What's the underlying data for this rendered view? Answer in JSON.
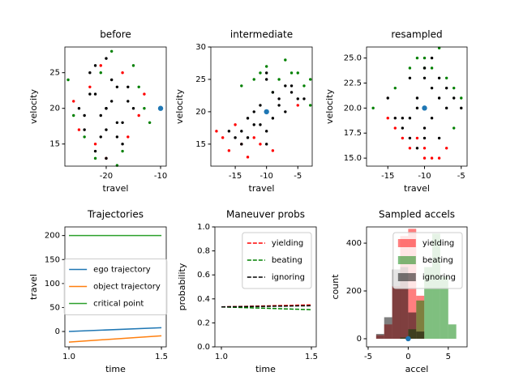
{
  "chart_data": [
    {
      "type": "scatter",
      "title": "before",
      "xlabel": "travel",
      "ylabel": "velocity",
      "xlim": [
        -27.6,
        -8.96
      ],
      "ylim": [
        11.9,
        28.6
      ],
      "xticks": [
        -20,
        -10
      ],
      "yticks": [
        15,
        20,
        25
      ],
      "series": [
        {
          "color": "#ff0000",
          "x": [
            -26,
            -14,
            -22,
            -17,
            -25,
            -13,
            -20,
            -23,
            -16,
            -21
          ],
          "y": [
            21,
            19,
            15,
            25,
            17,
            22,
            13,
            23,
            16,
            26
          ]
        },
        {
          "color": "#008000",
          "x": [
            -27,
            -13,
            -24,
            -15,
            -19,
            -22,
            -12,
            -26,
            -17,
            -21,
            -18,
            -14
          ],
          "y": [
            24,
            20,
            16,
            26,
            28,
            13,
            18,
            19,
            14,
            25,
            12,
            23
          ]
        },
        {
          "color": "#000000",
          "x": [
            -20,
            -22,
            -18,
            -24,
            -16,
            -21,
            -19,
            -23,
            -17,
            -20,
            -25,
            -15,
            -22,
            -18,
            -20,
            -21,
            -19,
            -23,
            -17,
            -20,
            -24,
            -16,
            -22,
            -18,
            -20
          ],
          "y": [
            20,
            22,
            18,
            19,
            21,
            16,
            24,
            25,
            15,
            27,
            20,
            20,
            14,
            23,
            17,
            19,
            21,
            22,
            18,
            13,
            17,
            23,
            26,
            16,
            20
          ]
        }
      ],
      "points": [
        {
          "color": "#1f77b4",
          "x": -10,
          "y": 20
        }
      ]
    },
    {
      "type": "scatter",
      "title": "intermediate",
      "xlabel": "travel",
      "ylabel": "velocity",
      "xlim": [
        -18.9,
        -2.7
      ],
      "ylim": [
        11.6,
        30
      ],
      "xticks": [
        -15,
        -10,
        -5
      ],
      "yticks": [
        15,
        20,
        25,
        30
      ],
      "series": [
        {
          "color": "#ff0000",
          "x": [
            -16,
            -17,
            -13,
            -15,
            -11,
            -18,
            -9,
            -5,
            -14,
            -12
          ],
          "y": [
            14,
            16,
            13,
            18,
            15,
            17,
            14,
            21,
            15,
            16
          ]
        },
        {
          "color": "#008000",
          "x": [
            -6,
            -8,
            -4,
            -10,
            -3,
            -12,
            -7,
            -5,
            -9,
            -14,
            -3,
            -11
          ],
          "y": [
            26,
            25,
            24,
            27,
            21,
            25,
            28,
            26,
            23,
            24,
            25,
            26
          ]
        },
        {
          "color": "#000000",
          "x": [
            -10,
            -12,
            -8,
            -14,
            -6,
            -11,
            -9,
            -13,
            -7,
            -10,
            -15,
            -5,
            -12,
            -8,
            -10,
            -11,
            -9,
            -13,
            -7,
            -10,
            -14,
            -6,
            -16,
            -4,
            -10
          ],
          "y": [
            20,
            18,
            22,
            17,
            23,
            21,
            19,
            16,
            24,
            25,
            16,
            22,
            20,
            21,
            15,
            18,
            23,
            19,
            20,
            17,
            15,
            24,
            17,
            22,
            26
          ]
        }
      ],
      "points": [
        {
          "color": "#1f77b4",
          "x": -10,
          "y": 20
        }
      ]
    },
    {
      "type": "scatter",
      "title": "resampled",
      "xlabel": "travel",
      "ylabel": "velocity",
      "xlim": [
        -17.9,
        -4.2
      ],
      "ylim": [
        14.2,
        26.1
      ],
      "xticks": [
        -15,
        -10,
        -5
      ],
      "yticks": [
        {
          "value": 15,
          "label": "15.0"
        },
        17.5,
        {
          "value": 20,
          "label": "20.0"
        },
        22.5,
        {
          "value": 25,
          "label": "25.0"
        }
      ],
      "series": [
        {
          "color": "#ff0000",
          "x": [
            -12,
            -11,
            -8,
            -14,
            -10,
            -9,
            -13,
            -7,
            -15,
            -10
          ],
          "y": [
            16,
            17,
            15,
            18,
            16,
            15,
            17,
            16,
            19,
            15
          ]
        },
        {
          "color": "#008000",
          "x": [
            -9,
            -10,
            -7,
            -12,
            -6,
            -11,
            -8,
            -5,
            -14,
            -10,
            -17,
            -6
          ],
          "y": [
            24,
            25,
            23,
            24,
            22,
            25,
            26,
            21,
            22,
            24,
            20,
            18
          ]
        },
        {
          "color": "#000000",
          "x": [
            -10,
            -12,
            -8,
            -13,
            -7,
            -11,
            -9,
            -12,
            -8,
            -10,
            -14,
            -6,
            -11,
            -9,
            -10,
            -11,
            -9,
            -13,
            -7,
            -10,
            -12,
            -8,
            -15,
            -5,
            -10
          ],
          "y": [
            20,
            19,
            21,
            18,
            22,
            21,
            19,
            17,
            23,
            24,
            19,
            21,
            16,
            25,
            18,
            20,
            22,
            19,
            20,
            17,
            23,
            17,
            21,
            20,
            23
          ]
        }
      ],
      "points": [
        {
          "color": "#1f77b4",
          "x": -10,
          "y": 20
        }
      ]
    },
    {
      "type": "line",
      "title": "Trajectories",
      "xlabel": "time",
      "ylabel": "travel",
      "xlim": [
        0.978,
        1.526
      ],
      "ylim": [
        -32,
        218
      ],
      "xticks": [
        {
          "value": 1,
          "label": "1.0"
        },
        1.5
      ],
      "yticks": [
        0,
        50,
        100,
        150,
        200
      ],
      "x": [
        1,
        1.5
      ],
      "legend": "center",
      "series": [
        {
          "name": "ego trajectory",
          "color": "#1f77b4",
          "linestyle": "solid",
          "values": [
            0,
            8
          ]
        },
        {
          "name": "object trajectory",
          "color": "#ff7f0e",
          "linestyle": "solid",
          "values": [
            -22,
            -9
          ]
        },
        {
          "name": "critical point",
          "color": "#2ca02c",
          "linestyle": "solid",
          "values": [
            200,
            200
          ]
        }
      ]
    },
    {
      "type": "line",
      "title": "Maneuver probs",
      "xlabel": "time",
      "ylabel": "probability",
      "xlim": [
        0.964,
        1.527
      ],
      "ylim": [
        0,
        1
      ],
      "xticks": [
        {
          "value": 1,
          "label": "1.0"
        },
        1.5
      ],
      "yticks": [
        {
          "value": 0,
          "label": "0.0"
        },
        0.2,
        0.4,
        0.6,
        0.8,
        {
          "value": 1,
          "label": "1.0"
        }
      ],
      "x": [
        1,
        1.5
      ],
      "legend": "upper right",
      "series": [
        {
          "name": "yielding",
          "color": "#ff0000",
          "linestyle": "dashed",
          "values": [
            0.333,
            0.35
          ]
        },
        {
          "name": "beating",
          "color": "#008000",
          "linestyle": "dashed",
          "values": [
            0.333,
            0.31
          ]
        },
        {
          "name": "ignoring",
          "color": "#000000",
          "linestyle": "dashed",
          "values": [
            0.333,
            0.343
          ]
        }
      ]
    },
    {
      "type": "histogram",
      "title": "Sampled accels",
      "xlabel": "accel",
      "ylabel": "count",
      "xlim": [
        -5.2,
        7.35
      ],
      "ylim": [
        -34,
        468
      ],
      "xticks": [
        -5,
        0,
        5
      ],
      "yticks": [
        0,
        200,
        400
      ],
      "alpha": 0.5,
      "legend": "upper right",
      "series": [
        {
          "name": "yielding",
          "color": "#ff0000",
          "bins": [
            -4,
            -3,
            -2,
            -1,
            0,
            1,
            2
          ],
          "values": [
            15,
            60,
            220,
            430,
            460,
            180
          ]
        },
        {
          "name": "beating",
          "color": "#008000",
          "bins": [
            -1,
            0,
            1,
            2,
            3,
            4,
            5,
            6
          ],
          "values": [
            5,
            40,
            160,
            300,
            440,
            260,
            60
          ]
        },
        {
          "name": "ignoring",
          "color": "#000000",
          "bins": [
            -4,
            -3,
            -2,
            -1,
            0,
            1,
            2
          ],
          "values": [
            20,
            90,
            290,
            300,
            110,
            30
          ]
        }
      ],
      "points": [
        {
          "color": "#1f77b4",
          "x": 0,
          "y": 0
        }
      ]
    }
  ]
}
